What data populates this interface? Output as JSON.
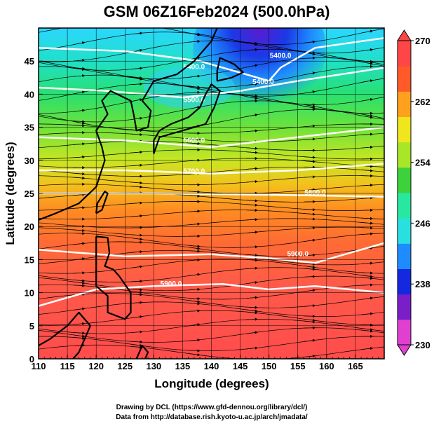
{
  "title": "GSM 06Z16Feb2024 (500.0hPa)",
  "credits": {
    "line1": "Drawing by DCL (https://www.gfd-dennou.org/library/dcl/)",
    "line2": "Data from http://database.rish.kyoto-u.ac.jp/arch/jmadata/"
  },
  "map": {
    "xlabel": "Longitude (degrees)",
    "ylabel": "Latitude  (degrees)",
    "xlim": [
      110,
      170
    ],
    "ylim": [
      0,
      50
    ],
    "x_ticks": [
      110,
      115,
      120,
      125,
      130,
      135,
      140,
      145,
      150,
      155,
      160,
      165
    ],
    "y_ticks": [
      0,
      5,
      10,
      15,
      20,
      25,
      30,
      35,
      40,
      45
    ],
    "grid": true
  },
  "colorbar": {
    "min": 230,
    "max": 270,
    "tick_values": [
      230,
      238,
      246,
      254,
      262,
      270
    ],
    "colors": [
      "#e040d0",
      "#7a1ec8",
      "#1428e0",
      "#1e8cff",
      "#28e0e0",
      "#28e8a0",
      "#3cd23c",
      "#a8e628",
      "#f0e61e",
      "#ffa01e",
      "#ff5a28",
      "#ff4646"
    ]
  },
  "contours": [
    {
      "label": "5400.0",
      "label_lon": 137,
      "label_lat": 43.8
    },
    {
      "label": "5400.0",
      "label_lon": 149,
      "label_lat": 41.5
    },
    {
      "label": "5400.0",
      "label_lon": 152,
      "label_lat": 45.5
    },
    {
      "label": "5500.0",
      "label_lon": 137,
      "label_lat": 38.8
    },
    {
      "label": "5600.0",
      "label_lon": 137,
      "label_lat": 32.7
    },
    {
      "label": "5700.0",
      "label_lon": 137,
      "label_lat": 28.0
    },
    {
      "label": "5800.0",
      "label_lon": 158,
      "label_lat": 24.8
    },
    {
      "label": "5900.0",
      "label_lon": 155,
      "label_lat": 15.5
    },
    {
      "label": "5900.0",
      "label_lon": 133,
      "label_lat": 11.0
    }
  ],
  "field_colors": {
    "background": "#ff5a50",
    "contour": "#ffffff",
    "coast": "#000000"
  }
}
